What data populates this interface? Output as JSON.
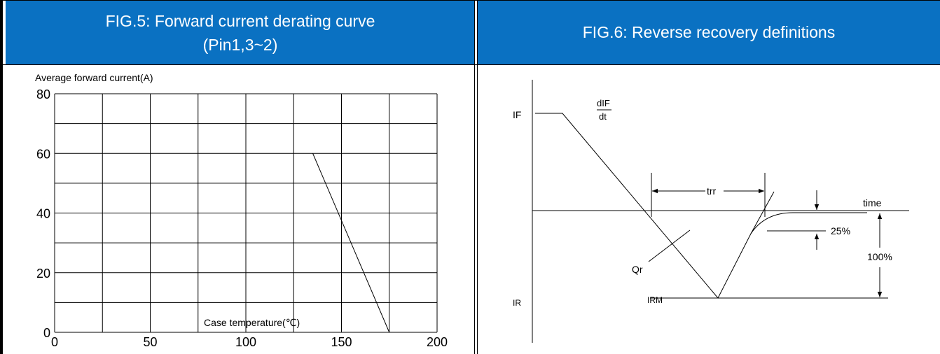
{
  "left_panel": {
    "title_line1": "FIG.5: Forward current derating curve",
    "title_line2": "(Pin1,3~2)"
  },
  "right_panel": {
    "title": "FIG.6: Reverse recovery definitions"
  },
  "colors": {
    "header_bg": "#0a71c2",
    "header_text": "#ffffff",
    "line": "#000000"
  },
  "chart_data": [
    {
      "type": "line",
      "title": "FIG.5: Forward current derating curve (Pin1,3~2)",
      "xlabel": "Case temperature(℃)",
      "ylabel": "Average forward current(A)",
      "xlim": [
        0,
        200
      ],
      "ylim": [
        0,
        80
      ],
      "x_ticks": [
        "0",
        "50",
        "100",
        "150",
        "200"
      ],
      "y_ticks": [
        "0",
        "20",
        "40",
        "60",
        "80"
      ],
      "x_tick_values": [
        0,
        50,
        100,
        150,
        200
      ],
      "y_tick_values": [
        0,
        20,
        40,
        60,
        80
      ],
      "grid": true,
      "series": [
        {
          "x": [
            135,
            175
          ],
          "y": [
            60,
            0
          ]
        }
      ]
    },
    {
      "type": "diagram",
      "title": "FIG.6: Reverse recovery definitions",
      "labels": {
        "if": "IF",
        "didt_num": "dIF",
        "didt_den": "dt",
        "trr": "trr",
        "time": "time",
        "pct25": "25%",
        "pct100": "100%",
        "qr": "Qr",
        "irm": "IRM",
        "ir": "IR"
      }
    }
  ]
}
